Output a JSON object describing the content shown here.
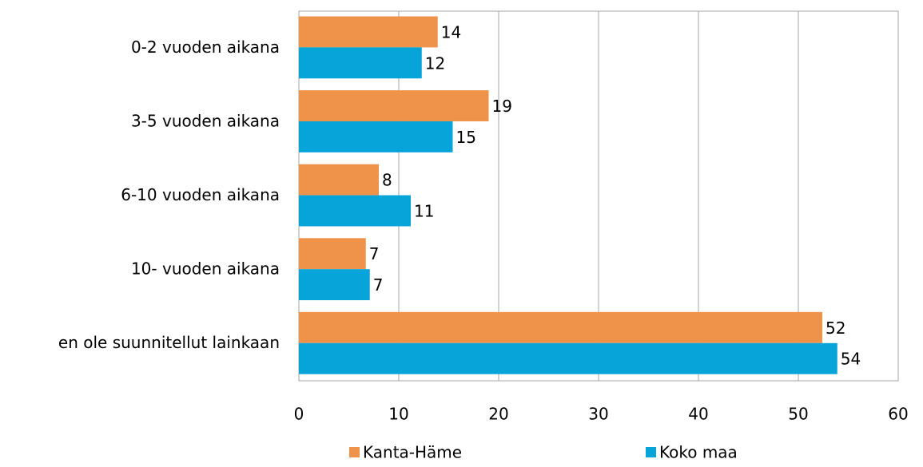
{
  "chart_data": {
    "type": "hbar",
    "categories": [
      "0-2 vuoden aikana",
      "3-5 vuoden aikana",
      "6-10 vuoden aikana",
      "10- vuoden aikana",
      "en ole suunnitellut  lainkaan"
    ],
    "series": [
      {
        "name": "Kanta-Häme",
        "color": "#f0934a",
        "values": [
          13.9,
          19.0,
          8.0,
          6.7,
          52.4
        ],
        "value_labels": [
          "14",
          "19",
          "8",
          "7",
          "52"
        ]
      },
      {
        "name": "Koko maa",
        "color": "#06a4d8",
        "values": [
          12.3,
          15.4,
          11.2,
          7.1,
          53.9
        ],
        "value_labels": [
          "12",
          "15",
          "11",
          "7",
          "54"
        ]
      }
    ],
    "xlim": [
      0,
      60
    ],
    "xticks": [
      0,
      10,
      20,
      30,
      40,
      50,
      60
    ],
    "grid": true,
    "legend": "bottom"
  }
}
